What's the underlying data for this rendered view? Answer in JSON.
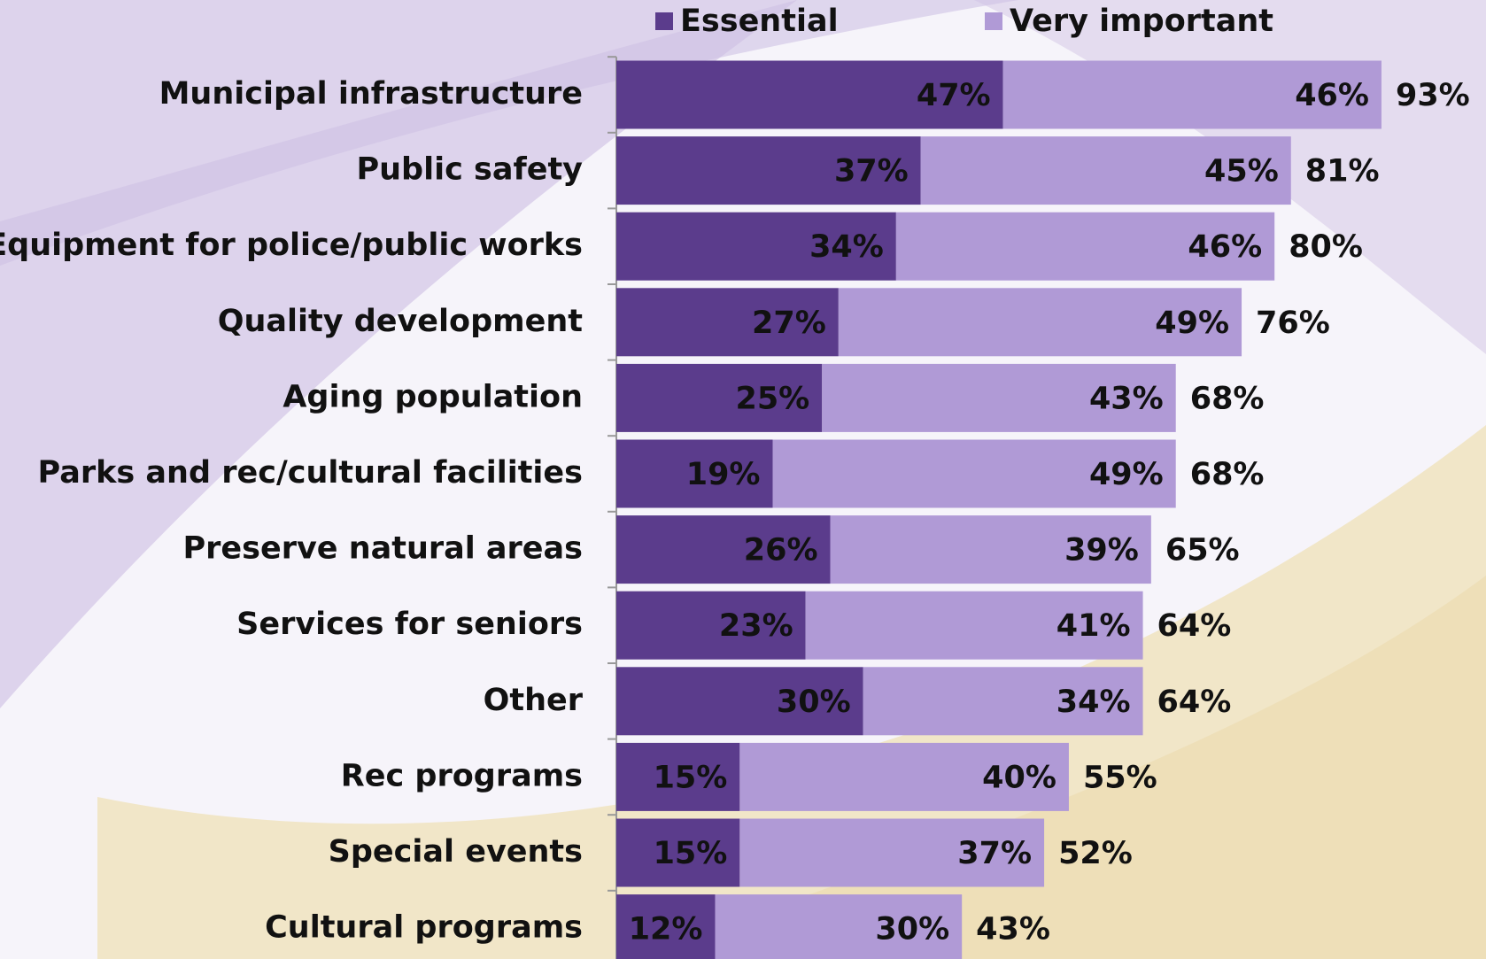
{
  "chart_data": {
    "type": "stacked_barh",
    "categories": [
      "Municipal infrastructure",
      "Public safety",
      "Equipment for police/public works",
      "Quality development",
      "Aging population",
      "Parks and rec/cultural facilities",
      "Preserve natural areas",
      "Services  for seniors",
      "Other",
      "Rec programs",
      "Special events",
      "Cultural programs"
    ],
    "series": [
      {
        "name": "Essential",
        "color": "#5b3c8c",
        "values": [
          47,
          37,
          34,
          27,
          25,
          19,
          26,
          23,
          30,
          15,
          15,
          12
        ],
        "value_labels": [
          "47%",
          "37%",
          "34%",
          "27%",
          "25%",
          "19%",
          "26%",
          "23%",
          "30%",
          "15%",
          "15%",
          "12%"
        ]
      },
      {
        "name": "Very important",
        "color": "#b09ad6",
        "values": [
          46,
          45,
          46,
          49,
          43,
          49,
          39,
          41,
          34,
          40,
          37,
          30
        ],
        "value_labels": [
          "46%",
          "45%",
          "46%",
          "49%",
          "43%",
          "49%",
          "39%",
          "41%",
          "34%",
          "40%",
          "37%",
          "30%"
        ]
      }
    ],
    "total_values": [
      93,
      81,
      80,
      76,
      68,
      68,
      65,
      64,
      64,
      55,
      52,
      43
    ],
    "total_labels": [
      "93%",
      "81%",
      "80%",
      "76%",
      "68%",
      "68%",
      "65%",
      "64%",
      "64%",
      "55%",
      "52%",
      "43%"
    ],
    "legend": "top"
  }
}
